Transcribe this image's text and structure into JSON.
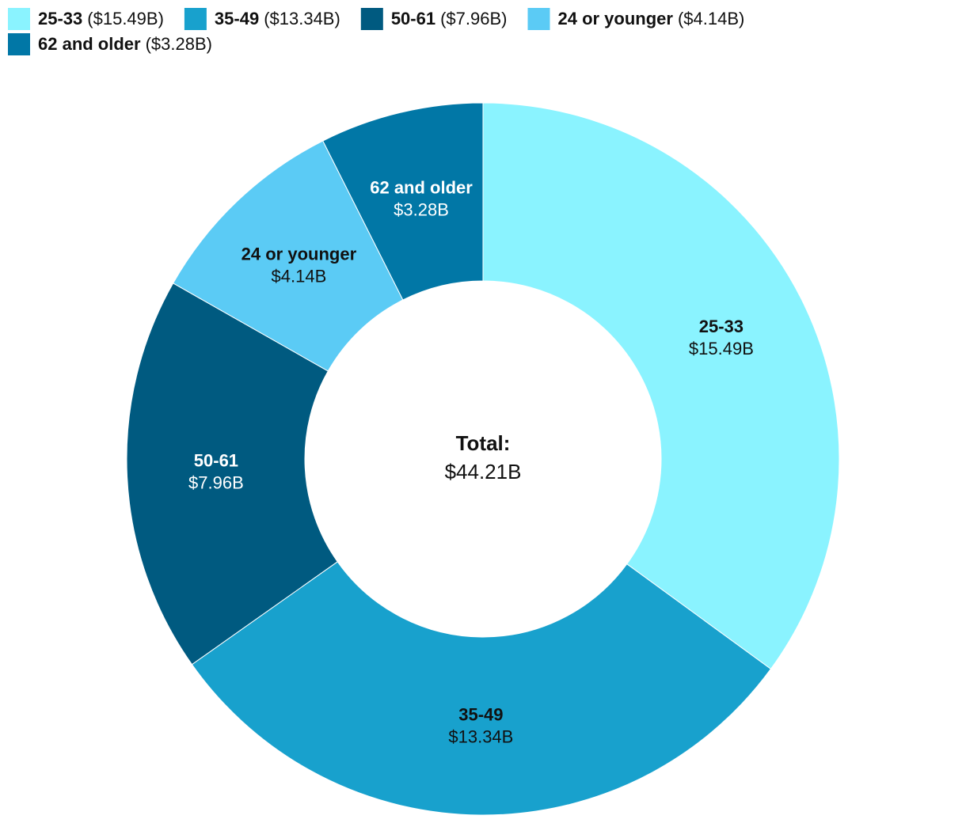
{
  "chart_data": {
    "type": "donut",
    "categories": [
      "25-33",
      "35-49",
      "50-61",
      "24 or younger",
      "62 and older"
    ],
    "values": [
      15.49,
      13.34,
      7.96,
      4.14,
      3.28
    ],
    "value_labels": [
      "$15.49B",
      "$13.34B",
      "$7.96B",
      "$4.14B",
      "$3.28B"
    ],
    "legend_value_labels": [
      "($15.49B)",
      "($13.34B)",
      "($7.96B)",
      "($4.14B)",
      "($3.28B)"
    ],
    "colors": [
      "#8af3ff",
      "#18a1cd",
      "#005a80",
      "#5bcbf5",
      "#0177a6"
    ],
    "legend": "top-left",
    "total_title": "Total:",
    "total": {
      "value": 44.21,
      "label": "$44.21B"
    }
  }
}
